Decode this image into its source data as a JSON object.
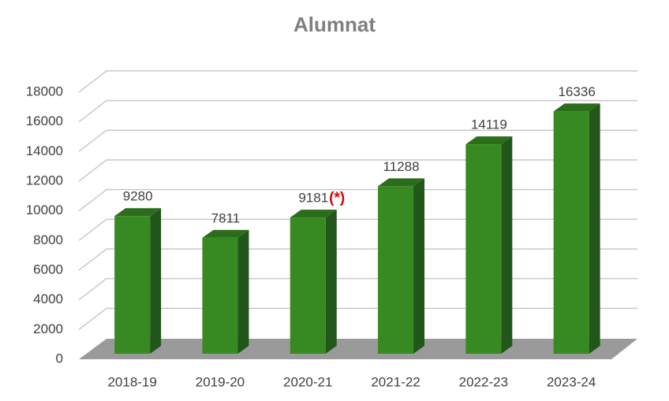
{
  "chart_data": {
    "type": "bar3d",
    "title": "Alumnat",
    "categories": [
      "2018-19",
      "2019-20",
      "2020-21",
      "2021-22",
      "2022-23",
      "2023-24"
    ],
    "values": [
      9280,
      7811,
      9181,
      11288,
      14119,
      16336
    ],
    "annotation": "(*)",
    "color": "#378a22",
    "ylim": [
      0,
      18000
    ],
    "yticks": [
      0,
      2000,
      4000,
      6000,
      8000,
      10000,
      12000,
      14000,
      16000,
      18000
    ],
    "grid": true
  }
}
